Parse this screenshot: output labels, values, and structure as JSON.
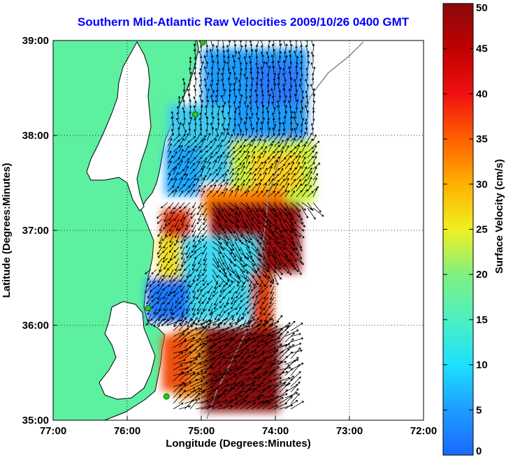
{
  "title": "Southern Mid-Atlantic Raw Velocities 2009/10/26 0400 GMT",
  "map": {
    "xlabel": "Longitude (Degrees:Minutes)",
    "ylabel": "Latitude (Degrees:Minutes)",
    "x_ticks": [
      {
        "value": -77,
        "label": "77:00"
      },
      {
        "value": -76,
        "label": "76:00"
      },
      {
        "value": -75,
        "label": "75:00"
      },
      {
        "value": -74,
        "label": "74:00"
      },
      {
        "value": -73,
        "label": "73:00"
      },
      {
        "value": -72,
        "label": "72:00"
      }
    ],
    "y_ticks": [
      {
        "value": 35,
        "label": "35:00"
      },
      {
        "value": 36,
        "label": "36:00"
      },
      {
        "value": 37,
        "label": "37:00"
      },
      {
        "value": 38,
        "label": "38:00"
      },
      {
        "value": 39,
        "label": "39:00"
      }
    ],
    "xlim": [
      -77,
      -72
    ],
    "ylim": [
      35,
      39
    ],
    "grid": "dotted",
    "land_color": "#5cf0a0",
    "stations": [
      {
        "lon": -74.98,
        "lat": 38.98
      },
      {
        "lon": -75.08,
        "lat": 38.22
      },
      {
        "lon": -75.72,
        "lat": 36.18
      },
      {
        "lon": -75.47,
        "lat": 35.25
      }
    ]
  },
  "colorbar": {
    "label": "Surface Velocity (cm/s)",
    "min": 0,
    "max": 50,
    "ticks": [
      {
        "value": 0,
        "label": "0"
      },
      {
        "value": 5,
        "label": "5"
      },
      {
        "value": 10,
        "label": "10"
      },
      {
        "value": 15,
        "label": "15"
      },
      {
        "value": 20,
        "label": "20"
      },
      {
        "value": 25,
        "label": "25"
      },
      {
        "value": 30,
        "label": "30"
      },
      {
        "value": 35,
        "label": "35"
      },
      {
        "value": 40,
        "label": "40"
      },
      {
        "value": 45,
        "label": "45"
      },
      {
        "value": 50,
        "label": "50"
      }
    ]
  }
}
